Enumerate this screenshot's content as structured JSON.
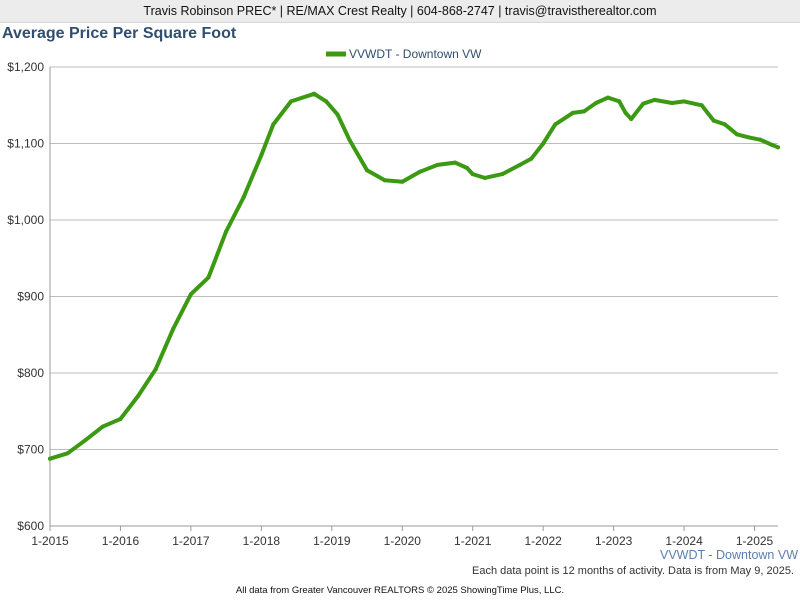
{
  "header": {
    "text": "Travis Robinson PREC* | RE/MAX Crest Realty | 604-868-2747 | travis@travistherealtor.com"
  },
  "chart_data": {
    "type": "line",
    "title": "Average Price Per Square Foot",
    "xlabel": "",
    "ylabel": "",
    "ylim": [
      600,
      1200
    ],
    "yticks": [
      600,
      700,
      800,
      900,
      1000,
      1100,
      1200
    ],
    "ytick_labels": [
      "$600",
      "$700",
      "$800",
      "$900",
      "$1,000",
      "$1,100",
      "$1,200"
    ],
    "xlim": [
      2015.0,
      2025.333
    ],
    "xticks": [
      2015,
      2016,
      2017,
      2018,
      2019,
      2020,
      2021,
      2022,
      2023,
      2024,
      2025
    ],
    "xtick_labels": [
      "1-2015",
      "1-2016",
      "1-2017",
      "1-2018",
      "1-2019",
      "1-2020",
      "1-2021",
      "1-2022",
      "1-2023",
      "1-2024",
      "1-2025"
    ],
    "grid": true,
    "legend_position": "top-center",
    "corner_label": "VVWDT - Downtown VW",
    "series": [
      {
        "name": "VVWDT - Downtown VW",
        "color": "#3b9a12",
        "points": [
          [
            2015.0,
            688
          ],
          [
            2015.25,
            695
          ],
          [
            2015.5,
            712
          ],
          [
            2015.75,
            730
          ],
          [
            2016.0,
            740
          ],
          [
            2016.25,
            770
          ],
          [
            2016.5,
            805
          ],
          [
            2016.75,
            858
          ],
          [
            2017.0,
            903
          ],
          [
            2017.25,
            925
          ],
          [
            2017.5,
            985
          ],
          [
            2017.75,
            1030
          ],
          [
            2018.0,
            1085
          ],
          [
            2018.17,
            1125
          ],
          [
            2018.42,
            1155
          ],
          [
            2018.75,
            1165
          ],
          [
            2018.92,
            1155
          ],
          [
            2019.08,
            1138
          ],
          [
            2019.25,
            1105
          ],
          [
            2019.5,
            1065
          ],
          [
            2019.75,
            1052
          ],
          [
            2020.0,
            1050
          ],
          [
            2020.25,
            1063
          ],
          [
            2020.5,
            1072
          ],
          [
            2020.75,
            1075
          ],
          [
            2020.92,
            1068
          ],
          [
            2021.0,
            1060
          ],
          [
            2021.17,
            1055
          ],
          [
            2021.42,
            1060
          ],
          [
            2021.67,
            1072
          ],
          [
            2021.83,
            1080
          ],
          [
            2022.0,
            1100
          ],
          [
            2022.17,
            1125
          ],
          [
            2022.42,
            1140
          ],
          [
            2022.58,
            1142
          ],
          [
            2022.75,
            1153
          ],
          [
            2022.92,
            1160
          ],
          [
            2023.08,
            1155
          ],
          [
            2023.17,
            1140
          ],
          [
            2023.25,
            1132
          ],
          [
            2023.42,
            1152
          ],
          [
            2023.58,
            1157
          ],
          [
            2023.83,
            1153
          ],
          [
            2024.0,
            1155
          ],
          [
            2024.25,
            1150
          ],
          [
            2024.42,
            1130
          ],
          [
            2024.58,
            1125
          ],
          [
            2024.75,
            1112
          ],
          [
            2024.92,
            1108
          ],
          [
            2025.08,
            1105
          ],
          [
            2025.25,
            1098
          ],
          [
            2025.333,
            1095
          ]
        ]
      }
    ]
  },
  "footer": {
    "note": "Each data point is 12 months of activity. Data is from May 9, 2025.",
    "source": "All data from Greater Vancouver REALTORS © 2025 ShowingTime Plus, LLC."
  }
}
